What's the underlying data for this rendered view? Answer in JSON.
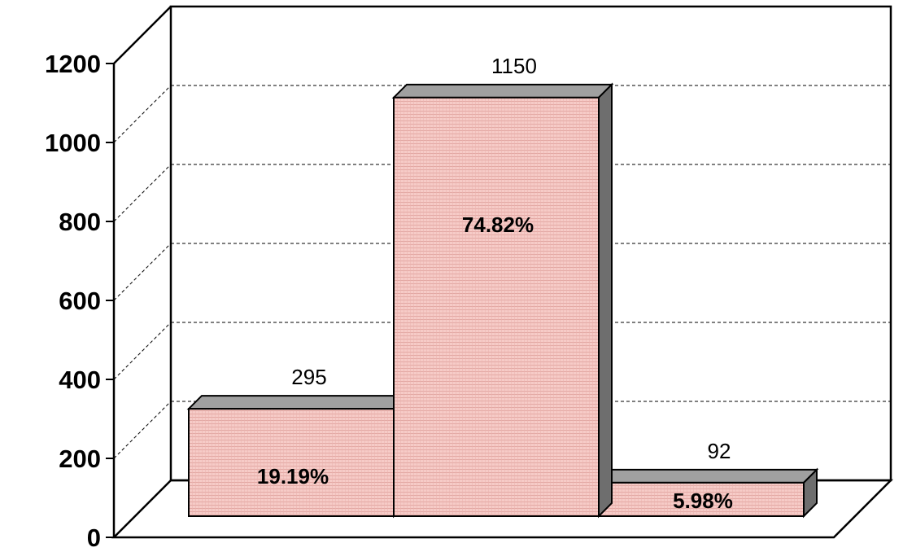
{
  "chart_data": {
    "type": "bar",
    "three_d": true,
    "title": "",
    "xlabel": "",
    "ylabel": "",
    "categories": [
      "",
      "",
      ""
    ],
    "values": [
      295,
      1150,
      92
    ],
    "value_labels": [
      "295",
      "1150",
      "92"
    ],
    "percent_labels": [
      "19.19%",
      "74.82%",
      "5.98%"
    ],
    "ylim": [
      0,
      1200
    ],
    "yticks": [
      0,
      200,
      400,
      600,
      800,
      1000,
      1200
    ],
    "grid": true,
    "legend": "none",
    "bar_color": "#f4c4c0",
    "bar_top_color": "#a0a0a0",
    "bar_side_color": "#6e6e6e"
  }
}
